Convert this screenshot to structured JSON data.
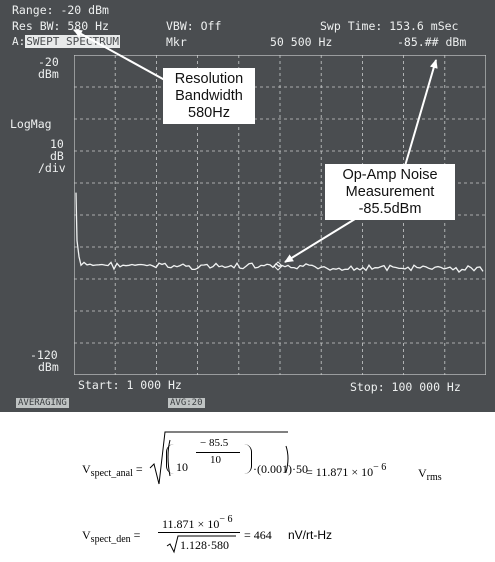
{
  "screen": {
    "range": "Range: -20 dBm",
    "res_bw": "Res BW: 580 Hz",
    "mode_prefix": "A:",
    "mode_box": "SWEPT SPECTRUM",
    "vbw": "VBW: Off",
    "mkr": "Mkr",
    "mkr_freq": "50 500 Hz",
    "swp_time": "Swp Time: 153.6 mSec",
    "mkr_value": "-85.",
    "mkr_value_tail": "## dBm",
    "ref_level": "-20",
    "ref_unit": "dBm",
    "scale_mode": "LogMag",
    "scale_value": "10",
    "scale_unit": "dB",
    "scale_per": "/div",
    "bottom_level": "-120",
    "bottom_unit": "dBm",
    "start": "Start: 1 000 Hz",
    "stop": "Stop: 100 000 Hz",
    "averaging": "AVERAGING",
    "avg_count": "AVG:20",
    "colors": {
      "screen_bg": "#4a4d50",
      "trace": "#f0f2f2",
      "grid": "#c9cccc"
    }
  },
  "callouts": {
    "rbw": [
      "Resolution",
      "Bandwidth",
      "580Hz"
    ],
    "noise": [
      "Op-Amp Noise",
      "Measurement",
      "-85.5dBm"
    ]
  },
  "equations": {
    "eq1_lhs": "V",
    "eq1_lhs_sub": "spect_anal",
    "eq1_exp_num": "− 85.5",
    "eq1_exp_den": "10",
    "eq1_base": "10",
    "eq1_tail": "·(0.001)·50",
    "eq1_result": "= 11.871 × 10",
    "eq1_result_exp": "− 6",
    "eq1_unit": "V",
    "eq1_unit_sub": "rms",
    "eq2_lhs": "V",
    "eq2_lhs_sub": "spect_den",
    "eq2_num": "11.871 × 10",
    "eq2_num_exp": "− 6",
    "eq2_den": "1.128·580",
    "eq2_result": "= 464",
    "eq2_unit": "nV/rt-Hz"
  }
}
